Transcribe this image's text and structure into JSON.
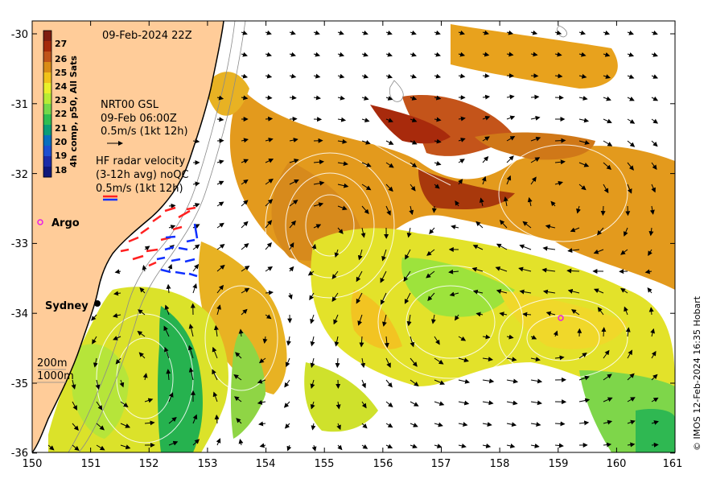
{
  "map": {
    "date_label": "09-Feb-2024 22Z",
    "colorbar": {
      "title": "4h comp, p50, All Sats",
      "ticks": [
        "27",
        "26",
        "25",
        "24",
        "23",
        "22",
        "21",
        "20",
        "19",
        "18"
      ],
      "colors": [
        "#7f1d10",
        "#a52a0a",
        "#c0541a",
        "#d98c17",
        "#f1c21a",
        "#eaf02a",
        "#b8ec35",
        "#74d94a",
        "#2fbe52",
        "#0b9d78",
        "#0a6fbf",
        "#1d4fd2",
        "#1b2ba8",
        "#10187a"
      ]
    },
    "legend_gsl": {
      "line1": "NRT00 GSL",
      "line2": "09-Feb 06:00Z",
      "line3": "0.5m/s (1kt 12h)"
    },
    "legend_hf": {
      "line1": "HF radar velocity",
      "line2": "(3-12h avg) noQC",
      "line3": "0.5m/s (1kt 12h)"
    },
    "argo_label": "Argo",
    "city_label": "Sydney",
    "depth_200": "200m",
    "depth_1000": "1000m",
    "credit": "© IMOS 12-Feb-2024 16:35 Hobart",
    "x_ticks": [
      "150",
      "151",
      "152",
      "153",
      "154",
      "155",
      "156",
      "157",
      "158",
      "159",
      "160",
      "161"
    ],
    "y_ticks": [
      "-30",
      "-31",
      "-32",
      "-33",
      "-34",
      "-35",
      "-36"
    ],
    "colors": {
      "land": "#ffcc99",
      "argo": "#e81de8",
      "hf_red": "#ff2020",
      "hf_blue": "#1030ff"
    }
  }
}
